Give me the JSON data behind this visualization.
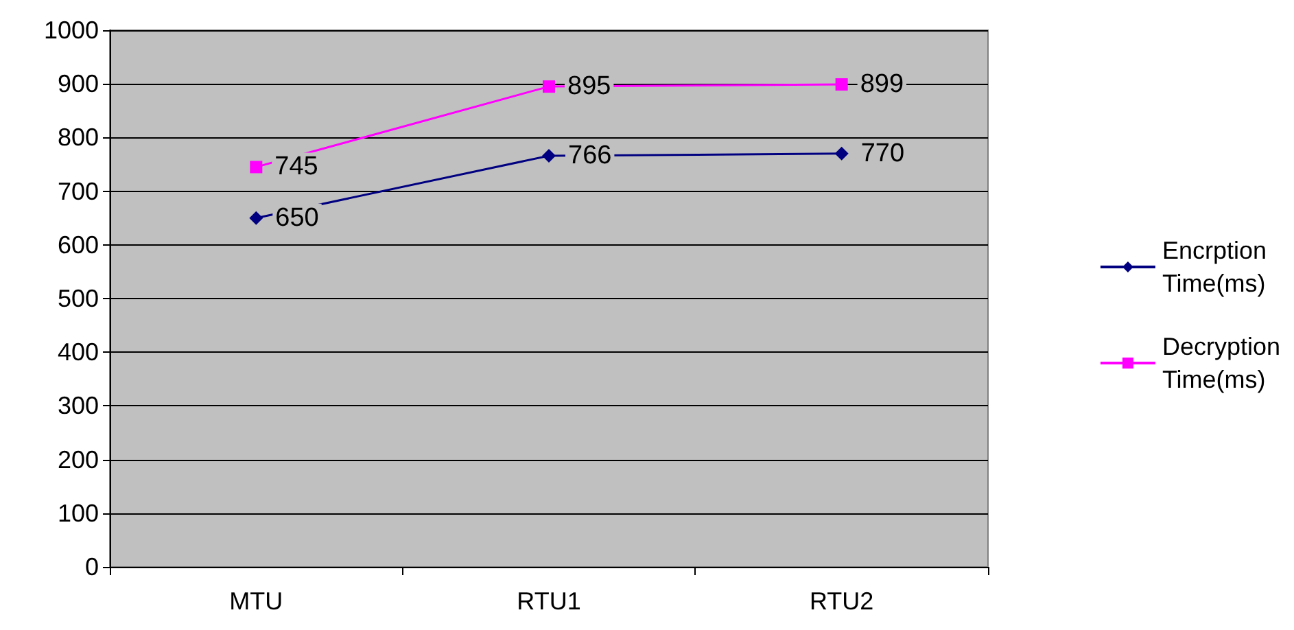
{
  "chart_data": {
    "type": "line",
    "categories": [
      "MTU",
      "RTU1",
      "RTU2"
    ],
    "series": [
      {
        "name": "Encrption Time(ms)",
        "color": "#000080",
        "values": [
          650,
          766,
          770
        ],
        "marker": "diamond"
      },
      {
        "name": "Decryption Time(ms)",
        "color": "#ff00ff",
        "values": [
          745,
          895,
          899
        ],
        "marker": "square"
      }
    ],
    "ylim": [
      0,
      1000
    ],
    "yticks": [
      0,
      100,
      200,
      300,
      400,
      500,
      600,
      700,
      800,
      900,
      1000
    ],
    "grid": "y",
    "legend": "right",
    "data_labels": true,
    "line_style": "solid"
  }
}
